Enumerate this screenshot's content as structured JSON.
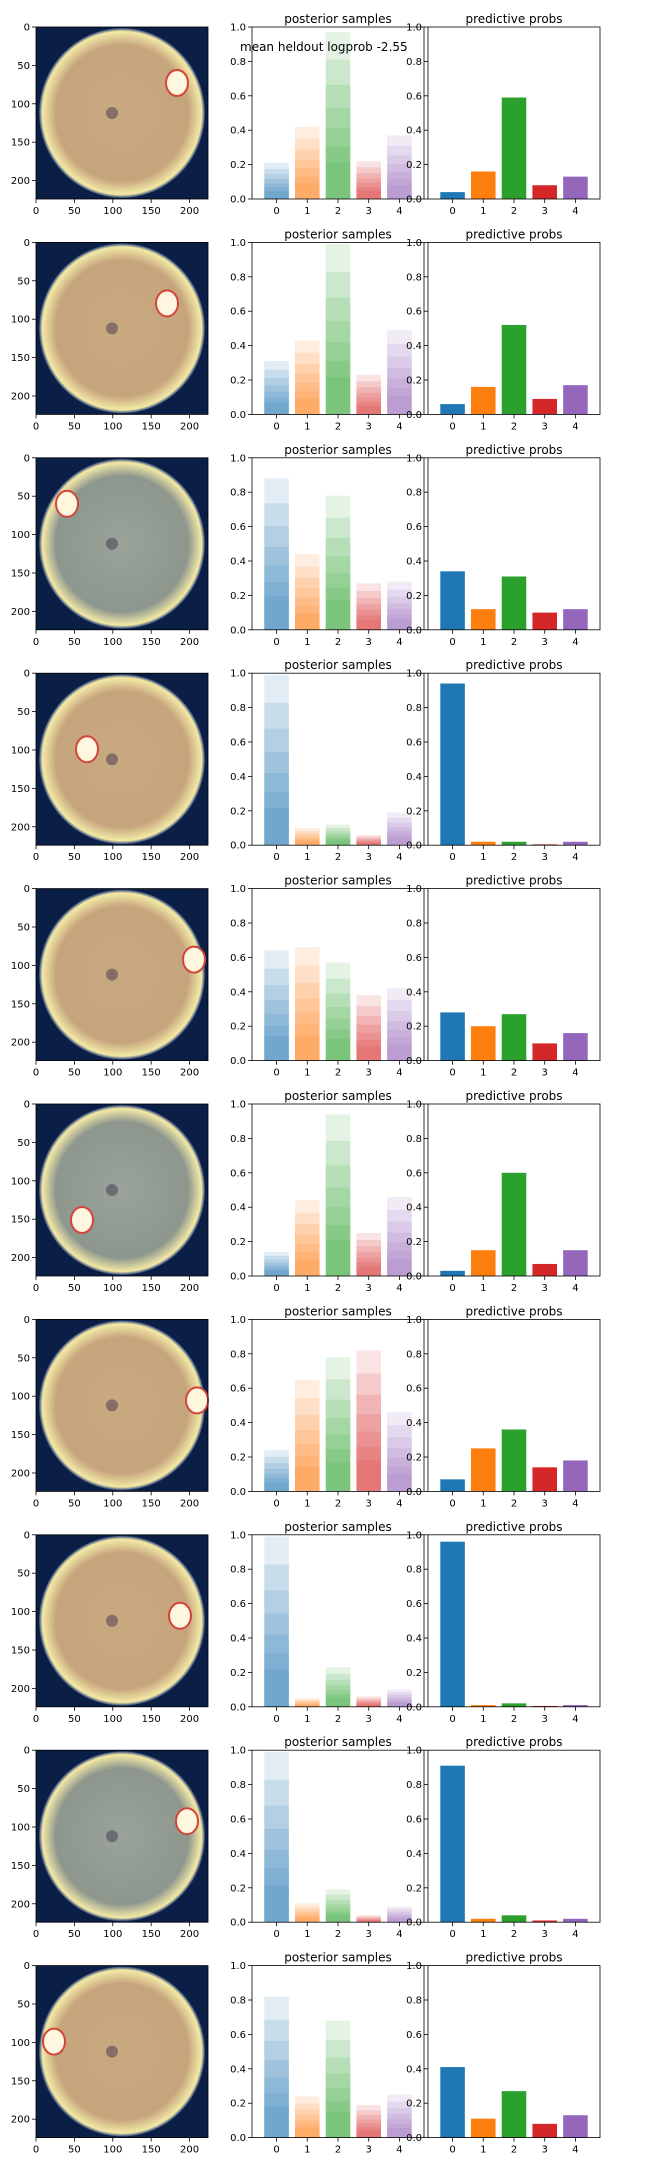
{
  "annotation": "mean heldout logprob -2.55",
  "colors": [
    "#1f77b4",
    "#ff7f0e",
    "#2ca02c",
    "#d62728",
    "#9467bd"
  ],
  "chart_data": {
    "type": "bar",
    "titles": {
      "posterior": "posterior samples",
      "predictive": "predictive probs"
    },
    "categories": [
      "0",
      "1",
      "2",
      "3",
      "4"
    ],
    "ylim": [
      0,
      1
    ],
    "yticks": [
      "0.0",
      "0.2",
      "0.4",
      "0.6",
      "0.8",
      "1.0"
    ],
    "image_xticks": [
      "0",
      "50",
      "100",
      "150",
      "200"
    ],
    "image_yticks": [
      "0",
      "50",
      "100",
      "150",
      "200"
    ],
    "rows": [
      {
        "posterior_max": [
          0.21,
          0.42,
          0.97,
          0.22,
          0.37
        ],
        "predictive": [
          0.04,
          0.16,
          0.59,
          0.08,
          0.13
        ]
      },
      {
        "posterior_max": [
          0.31,
          0.43,
          0.99,
          0.23,
          0.49
        ],
        "predictive": [
          0.06,
          0.16,
          0.52,
          0.09,
          0.17
        ]
      },
      {
        "posterior_max": [
          0.88,
          0.44,
          0.78,
          0.27,
          0.28
        ],
        "predictive": [
          0.34,
          0.12,
          0.31,
          0.1,
          0.12
        ]
      },
      {
        "posterior_max": [
          0.99,
          0.1,
          0.12,
          0.06,
          0.19
        ],
        "predictive": [
          0.94,
          0.02,
          0.02,
          0.005,
          0.02
        ]
      },
      {
        "posterior_max": [
          0.64,
          0.66,
          0.57,
          0.38,
          0.42
        ],
        "predictive": [
          0.28,
          0.2,
          0.27,
          0.1,
          0.16
        ]
      },
      {
        "posterior_max": [
          0.14,
          0.44,
          0.94,
          0.25,
          0.46
        ],
        "predictive": [
          0.03,
          0.15,
          0.6,
          0.07,
          0.15
        ]
      },
      {
        "posterior_max": [
          0.24,
          0.65,
          0.78,
          0.82,
          0.46
        ],
        "predictive": [
          0.07,
          0.25,
          0.36,
          0.14,
          0.18
        ]
      },
      {
        "posterior_max": [
          0.99,
          0.05,
          0.23,
          0.06,
          0.1
        ],
        "predictive": [
          0.96,
          0.01,
          0.02,
          0.005,
          0.01
        ]
      },
      {
        "posterior_max": [
          0.99,
          0.11,
          0.19,
          0.04,
          0.09
        ],
        "predictive": [
          0.91,
          0.02,
          0.04,
          0.01,
          0.02
        ]
      },
      {
        "posterior_max": [
          0.82,
          0.24,
          0.68,
          0.19,
          0.25
        ],
        "predictive": [
          0.41,
          0.11,
          0.27,
          0.08,
          0.13
        ]
      }
    ]
  }
}
